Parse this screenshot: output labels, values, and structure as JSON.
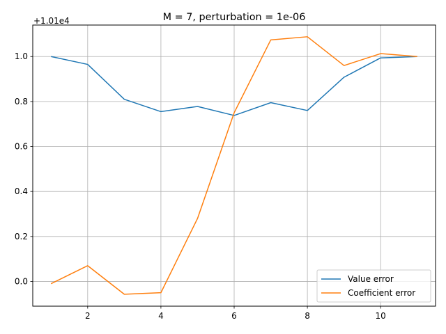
{
  "chart_data": {
    "type": "line",
    "title": "M = 7, perturbation = 1e-06",
    "y_offset_label": "+1.01e4",
    "xlabel": "",
    "ylabel": "",
    "xlim": [
      0.5,
      11.5
    ],
    "ylim": [
      -0.11,
      1.14
    ],
    "grid": true,
    "legend_position": "lower-right",
    "x_ticks": [
      2,
      4,
      6,
      8,
      10
    ],
    "x_tick_labels": [
      "2",
      "4",
      "6",
      "8",
      "10"
    ],
    "y_ticks": [
      0.0,
      0.2,
      0.4,
      0.6,
      0.8,
      1.0
    ],
    "y_tick_labels": [
      "0.0",
      "0.2",
      "0.4",
      "0.6",
      "0.8",
      "1.0"
    ],
    "x": [
      1,
      2,
      3,
      4,
      5,
      6,
      7,
      8,
      9,
      10,
      11
    ],
    "series": [
      {
        "name": "Value error",
        "color": "#1f77b4",
        "values": [
          1.0,
          0.965,
          0.81,
          0.755,
          0.778,
          0.738,
          0.795,
          0.76,
          0.908,
          0.994,
          1.0
        ]
      },
      {
        "name": "Coefficient error",
        "color": "#ff7f0e",
        "values": [
          -0.01,
          0.07,
          -0.057,
          -0.05,
          0.28,
          0.75,
          1.074,
          1.088,
          0.96,
          1.013,
          1.0
        ]
      }
    ]
  }
}
